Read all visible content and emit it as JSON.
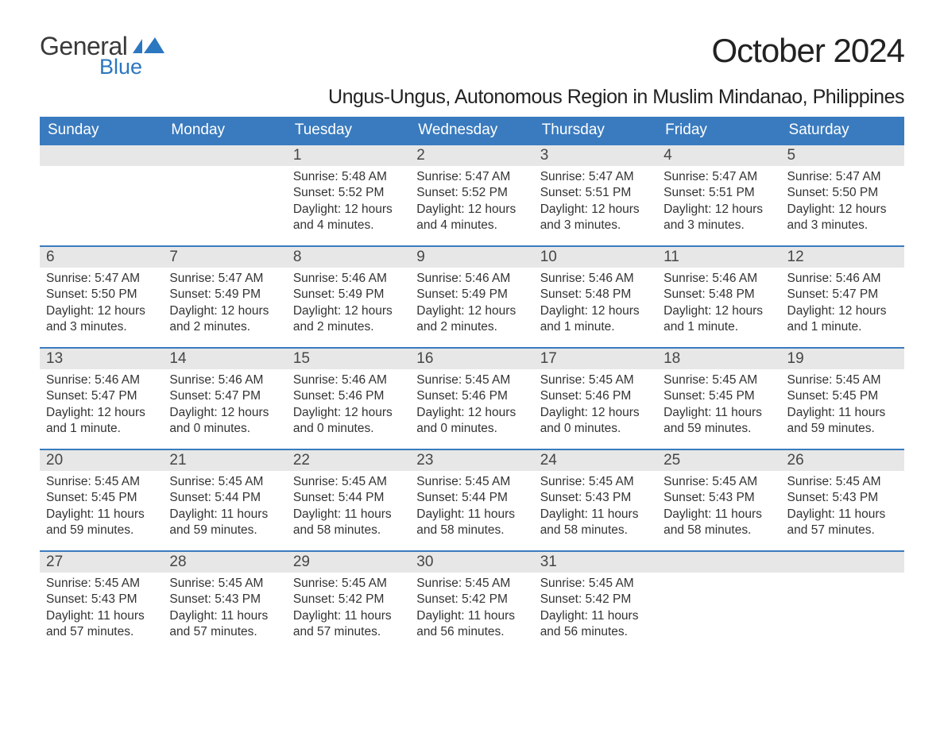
{
  "logo": {
    "word1": "General",
    "word2": "Blue",
    "icon_color": "#2b77c0",
    "text1_color": "#3a3a3a"
  },
  "title": "October 2024",
  "location": "Ungus-Ungus, Autonomous Region in Muslim Mindanao, Philippines",
  "header_bg": "#3a7bbf",
  "header_fg": "#ffffff",
  "daynum_bg": "#e7e7e7",
  "row_border": "#3a7bbf",
  "text_color": "#333333",
  "weekdays": [
    "Sunday",
    "Monday",
    "Tuesday",
    "Wednesday",
    "Thursday",
    "Friday",
    "Saturday"
  ],
  "weeks": [
    [
      {
        "n": "",
        "sr": "",
        "ss": "",
        "dl": ""
      },
      {
        "n": "",
        "sr": "",
        "ss": "",
        "dl": ""
      },
      {
        "n": "1",
        "sr": "Sunrise: 5:48 AM",
        "ss": "Sunset: 5:52 PM",
        "dl": "Daylight: 12 hours and 4 minutes."
      },
      {
        "n": "2",
        "sr": "Sunrise: 5:47 AM",
        "ss": "Sunset: 5:52 PM",
        "dl": "Daylight: 12 hours and 4 minutes."
      },
      {
        "n": "3",
        "sr": "Sunrise: 5:47 AM",
        "ss": "Sunset: 5:51 PM",
        "dl": "Daylight: 12 hours and 3 minutes."
      },
      {
        "n": "4",
        "sr": "Sunrise: 5:47 AM",
        "ss": "Sunset: 5:51 PM",
        "dl": "Daylight: 12 hours and 3 minutes."
      },
      {
        "n": "5",
        "sr": "Sunrise: 5:47 AM",
        "ss": "Sunset: 5:50 PM",
        "dl": "Daylight: 12 hours and 3 minutes."
      }
    ],
    [
      {
        "n": "6",
        "sr": "Sunrise: 5:47 AM",
        "ss": "Sunset: 5:50 PM",
        "dl": "Daylight: 12 hours and 3 minutes."
      },
      {
        "n": "7",
        "sr": "Sunrise: 5:47 AM",
        "ss": "Sunset: 5:49 PM",
        "dl": "Daylight: 12 hours and 2 minutes."
      },
      {
        "n": "8",
        "sr": "Sunrise: 5:46 AM",
        "ss": "Sunset: 5:49 PM",
        "dl": "Daylight: 12 hours and 2 minutes."
      },
      {
        "n": "9",
        "sr": "Sunrise: 5:46 AM",
        "ss": "Sunset: 5:49 PM",
        "dl": "Daylight: 12 hours and 2 minutes."
      },
      {
        "n": "10",
        "sr": "Sunrise: 5:46 AM",
        "ss": "Sunset: 5:48 PM",
        "dl": "Daylight: 12 hours and 1 minute."
      },
      {
        "n": "11",
        "sr": "Sunrise: 5:46 AM",
        "ss": "Sunset: 5:48 PM",
        "dl": "Daylight: 12 hours and 1 minute."
      },
      {
        "n": "12",
        "sr": "Sunrise: 5:46 AM",
        "ss": "Sunset: 5:47 PM",
        "dl": "Daylight: 12 hours and 1 minute."
      }
    ],
    [
      {
        "n": "13",
        "sr": "Sunrise: 5:46 AM",
        "ss": "Sunset: 5:47 PM",
        "dl": "Daylight: 12 hours and 1 minute."
      },
      {
        "n": "14",
        "sr": "Sunrise: 5:46 AM",
        "ss": "Sunset: 5:47 PM",
        "dl": "Daylight: 12 hours and 0 minutes."
      },
      {
        "n": "15",
        "sr": "Sunrise: 5:46 AM",
        "ss": "Sunset: 5:46 PM",
        "dl": "Daylight: 12 hours and 0 minutes."
      },
      {
        "n": "16",
        "sr": "Sunrise: 5:45 AM",
        "ss": "Sunset: 5:46 PM",
        "dl": "Daylight: 12 hours and 0 minutes."
      },
      {
        "n": "17",
        "sr": "Sunrise: 5:45 AM",
        "ss": "Sunset: 5:46 PM",
        "dl": "Daylight: 12 hours and 0 minutes."
      },
      {
        "n": "18",
        "sr": "Sunrise: 5:45 AM",
        "ss": "Sunset: 5:45 PM",
        "dl": "Daylight: 11 hours and 59 minutes."
      },
      {
        "n": "19",
        "sr": "Sunrise: 5:45 AM",
        "ss": "Sunset: 5:45 PM",
        "dl": "Daylight: 11 hours and 59 minutes."
      }
    ],
    [
      {
        "n": "20",
        "sr": "Sunrise: 5:45 AM",
        "ss": "Sunset: 5:45 PM",
        "dl": "Daylight: 11 hours and 59 minutes."
      },
      {
        "n": "21",
        "sr": "Sunrise: 5:45 AM",
        "ss": "Sunset: 5:44 PM",
        "dl": "Daylight: 11 hours and 59 minutes."
      },
      {
        "n": "22",
        "sr": "Sunrise: 5:45 AM",
        "ss": "Sunset: 5:44 PM",
        "dl": "Daylight: 11 hours and 58 minutes."
      },
      {
        "n": "23",
        "sr": "Sunrise: 5:45 AM",
        "ss": "Sunset: 5:44 PM",
        "dl": "Daylight: 11 hours and 58 minutes."
      },
      {
        "n": "24",
        "sr": "Sunrise: 5:45 AM",
        "ss": "Sunset: 5:43 PM",
        "dl": "Daylight: 11 hours and 58 minutes."
      },
      {
        "n": "25",
        "sr": "Sunrise: 5:45 AM",
        "ss": "Sunset: 5:43 PM",
        "dl": "Daylight: 11 hours and 58 minutes."
      },
      {
        "n": "26",
        "sr": "Sunrise: 5:45 AM",
        "ss": "Sunset: 5:43 PM",
        "dl": "Daylight: 11 hours and 57 minutes."
      }
    ],
    [
      {
        "n": "27",
        "sr": "Sunrise: 5:45 AM",
        "ss": "Sunset: 5:43 PM",
        "dl": "Daylight: 11 hours and 57 minutes."
      },
      {
        "n": "28",
        "sr": "Sunrise: 5:45 AM",
        "ss": "Sunset: 5:43 PM",
        "dl": "Daylight: 11 hours and 57 minutes."
      },
      {
        "n": "29",
        "sr": "Sunrise: 5:45 AM",
        "ss": "Sunset: 5:42 PM",
        "dl": "Daylight: 11 hours and 57 minutes."
      },
      {
        "n": "30",
        "sr": "Sunrise: 5:45 AM",
        "ss": "Sunset: 5:42 PM",
        "dl": "Daylight: 11 hours and 56 minutes."
      },
      {
        "n": "31",
        "sr": "Sunrise: 5:45 AM",
        "ss": "Sunset: 5:42 PM",
        "dl": "Daylight: 11 hours and 56 minutes."
      },
      {
        "n": "",
        "sr": "",
        "ss": "",
        "dl": ""
      },
      {
        "n": "",
        "sr": "",
        "ss": "",
        "dl": ""
      }
    ]
  ]
}
